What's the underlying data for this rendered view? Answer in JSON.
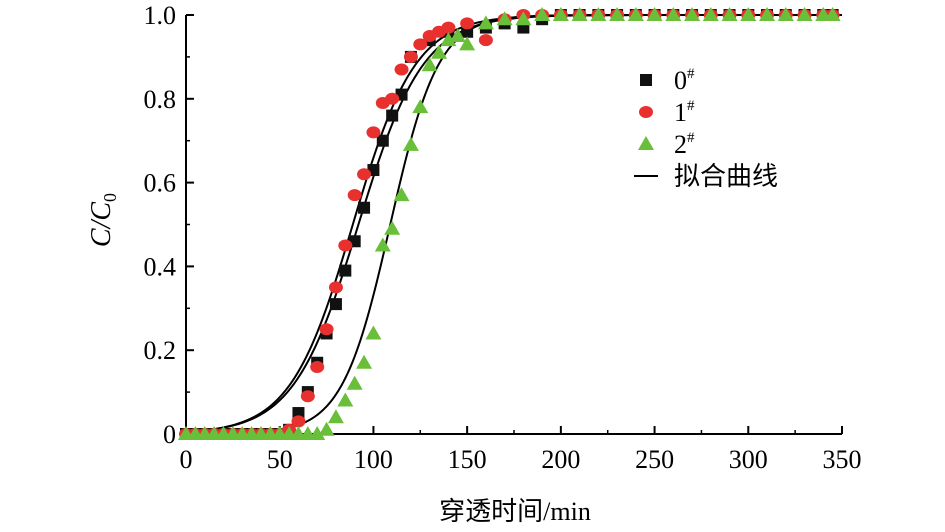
{
  "chart_data": {
    "type": "scatter",
    "title": "",
    "xlabel": "穿透时间/min",
    "ylabel_main": "C/C",
    "ylabel_sub": "0",
    "xlim": [
      0,
      350
    ],
    "ylim": [
      0,
      1.0
    ],
    "xticks": [
      0,
      50,
      100,
      150,
      200,
      250,
      300,
      350
    ],
    "xtick_labels": [
      "0",
      "50",
      "100",
      "150",
      "200",
      "250",
      "300",
      "350"
    ],
    "yticks": [
      0,
      0.2,
      0.4,
      0.6,
      0.8,
      1.0
    ],
    "ytick_labels": [
      "0",
      "0.2",
      "0.4",
      "0.6",
      "0.8",
      "1.0"
    ],
    "grid": false,
    "legend_position": "right",
    "legend": [
      {
        "name": "0",
        "sup": "#",
        "marker": "square",
        "color": "#111111"
      },
      {
        "name": "1",
        "sup": "#",
        "marker": "circle",
        "color": "#e8302f"
      },
      {
        "name": "2",
        "sup": "#",
        "marker": "triangle",
        "color": "#6abf3a"
      },
      {
        "name": "拟合曲线",
        "sup": "",
        "marker": "line",
        "color": "#000000"
      }
    ],
    "series": [
      {
        "name": "0#",
        "marker": "square",
        "color": "#111111",
        "points": [
          [
            0,
            0
          ],
          [
            5,
            0
          ],
          [
            10,
            0
          ],
          [
            15,
            0
          ],
          [
            20,
            0
          ],
          [
            25,
            0
          ],
          [
            30,
            0
          ],
          [
            35,
            0
          ],
          [
            40,
            0
          ],
          [
            45,
            0
          ],
          [
            50,
            0
          ],
          [
            55,
            0.01
          ],
          [
            60,
            0.05
          ],
          [
            65,
            0.1
          ],
          [
            70,
            0.17
          ],
          [
            75,
            0.24
          ],
          [
            80,
            0.31
          ],
          [
            85,
            0.39
          ],
          [
            90,
            0.46
          ],
          [
            95,
            0.54
          ],
          [
            100,
            0.63
          ],
          [
            105,
            0.7
          ],
          [
            110,
            0.76
          ],
          [
            115,
            0.81
          ],
          [
            120,
            0.9
          ],
          [
            130,
            0.94
          ],
          [
            140,
            0.96
          ],
          [
            150,
            0.96
          ],
          [
            160,
            0.97
          ],
          [
            170,
            0.98
          ],
          [
            180,
            0.97
          ],
          [
            190,
            0.99
          ],
          [
            200,
            1
          ],
          [
            210,
            1
          ],
          [
            220,
            1
          ],
          [
            230,
            1
          ],
          [
            240,
            1
          ],
          [
            250,
            1
          ],
          [
            260,
            1
          ],
          [
            270,
            1
          ],
          [
            280,
            1
          ],
          [
            290,
            1
          ],
          [
            300,
            1
          ],
          [
            310,
            1
          ],
          [
            320,
            1
          ],
          [
            330,
            1
          ],
          [
            340,
            1
          ],
          [
            345,
            1
          ]
        ]
      },
      {
        "name": "1#",
        "marker": "circle",
        "color": "#e8302f",
        "points": [
          [
            0,
            0
          ],
          [
            5,
            0
          ],
          [
            10,
            0
          ],
          [
            15,
            0
          ],
          [
            20,
            0
          ],
          [
            25,
            0
          ],
          [
            30,
            0
          ],
          [
            35,
            0
          ],
          [
            40,
            0
          ],
          [
            45,
            0
          ],
          [
            50,
            0
          ],
          [
            55,
            0.01
          ],
          [
            60,
            0.03
          ],
          [
            65,
            0.09
          ],
          [
            70,
            0.16
          ],
          [
            75,
            0.25
          ],
          [
            80,
            0.35
          ],
          [
            85,
            0.45
          ],
          [
            90,
            0.57
          ],
          [
            95,
            0.62
          ],
          [
            100,
            0.72
          ],
          [
            105,
            0.79
          ],
          [
            110,
            0.8
          ],
          [
            115,
            0.87
          ],
          [
            120,
            0.9
          ],
          [
            125,
            0.93
          ],
          [
            130,
            0.95
          ],
          [
            135,
            0.96
          ],
          [
            140,
            0.97
          ],
          [
            150,
            0.98
          ],
          [
            160,
            0.94
          ],
          [
            170,
            0.99
          ],
          [
            180,
            1
          ],
          [
            190,
            1
          ],
          [
            200,
            1
          ],
          [
            210,
            1
          ],
          [
            220,
            1
          ],
          [
            230,
            1
          ],
          [
            240,
            1
          ],
          [
            250,
            1
          ],
          [
            260,
            1
          ],
          [
            270,
            1
          ],
          [
            280,
            1
          ],
          [
            290,
            1
          ],
          [
            300,
            1
          ],
          [
            310,
            1
          ],
          [
            320,
            1
          ],
          [
            330,
            1
          ],
          [
            340,
            1
          ],
          [
            345,
            1
          ]
        ]
      },
      {
        "name": "2#",
        "marker": "triangle",
        "color": "#6abf3a",
        "points": [
          [
            0,
            0
          ],
          [
            5,
            0
          ],
          [
            10,
            0
          ],
          [
            15,
            0
          ],
          [
            20,
            0
          ],
          [
            25,
            0
          ],
          [
            30,
            0
          ],
          [
            35,
            0
          ],
          [
            40,
            0
          ],
          [
            45,
            0
          ],
          [
            50,
            0
          ],
          [
            55,
            0
          ],
          [
            60,
            0
          ],
          [
            65,
            0
          ],
          [
            70,
            0
          ],
          [
            75,
            0.01
          ],
          [
            80,
            0.04
          ],
          [
            85,
            0.08
          ],
          [
            90,
            0.12
          ],
          [
            95,
            0.17
          ],
          [
            100,
            0.24
          ],
          [
            105,
            0.45
          ],
          [
            110,
            0.49
          ],
          [
            115,
            0.57
          ],
          [
            120,
            0.69
          ],
          [
            125,
            0.78
          ],
          [
            130,
            0.88
          ],
          [
            135,
            0.91
          ],
          [
            140,
            0.94
          ],
          [
            145,
            0.95
          ],
          [
            150,
            0.93
          ],
          [
            160,
            0.98
          ],
          [
            170,
            0.99
          ],
          [
            180,
            0.99
          ],
          [
            190,
            1
          ],
          [
            200,
            1
          ],
          [
            210,
            1
          ],
          [
            220,
            1
          ],
          [
            230,
            1
          ],
          [
            240,
            1
          ],
          [
            250,
            1
          ],
          [
            260,
            1
          ],
          [
            270,
            1
          ],
          [
            280,
            1
          ],
          [
            290,
            1
          ],
          [
            300,
            1
          ],
          [
            310,
            1
          ],
          [
            320,
            1
          ],
          [
            330,
            1
          ],
          [
            340,
            1
          ],
          [
            345,
            1
          ]
        ]
      }
    ],
    "fit_curves": [
      {
        "name": "fit-0",
        "k": 0.058,
        "t0": 92
      },
      {
        "name": "fit-1",
        "k": 0.06,
        "t0": 89
      },
      {
        "name": "fit-2",
        "k": 0.078,
        "t0": 109
      }
    ]
  }
}
